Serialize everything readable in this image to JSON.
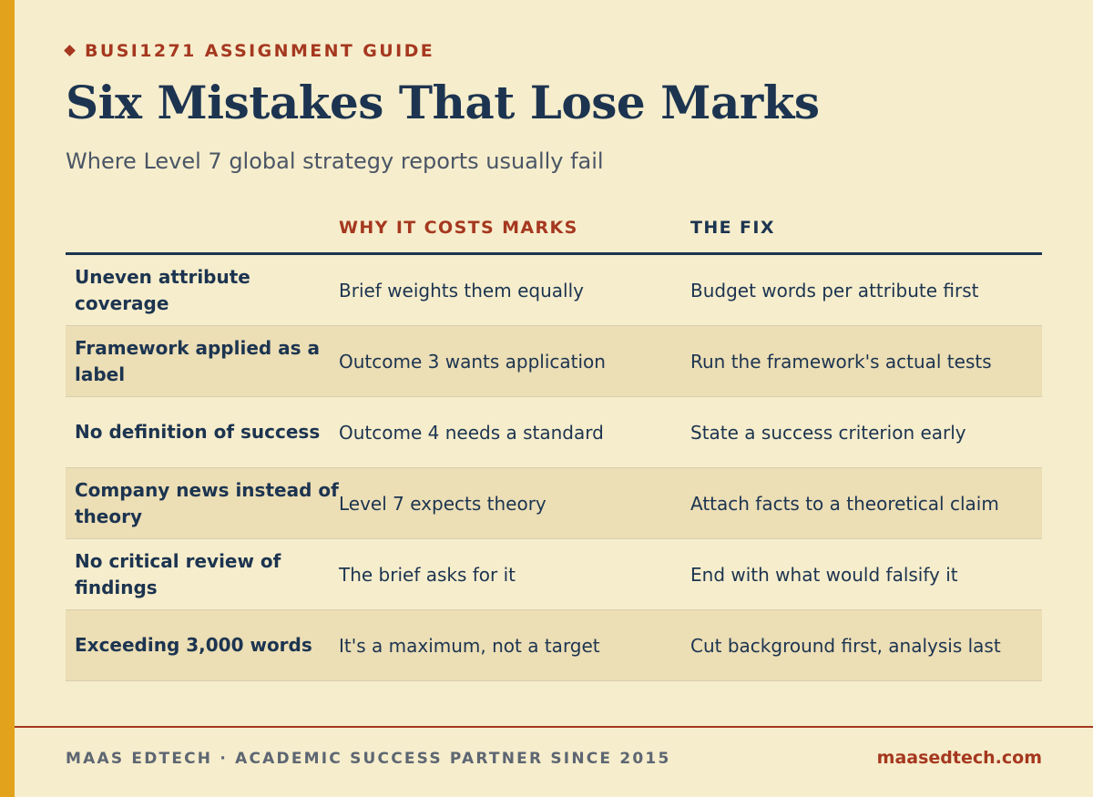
{
  "header": {
    "eyebrow": "BUSI1271 ASSIGNMENT GUIDE",
    "title": "Six Mistakes That Lose Marks",
    "subtitle": "Where Level 7 global strategy reports usually fail"
  },
  "table": {
    "columns": [
      "",
      "WHY IT COSTS MARKS",
      "THE FIX"
    ],
    "rows": [
      {
        "mistake": "Uneven attribute coverage",
        "why": "Brief weights them equally",
        "fix": "Budget words per attribute first"
      },
      {
        "mistake": "Framework applied as a label",
        "why": "Outcome 3 wants application",
        "fix": "Run the framework's actual tests"
      },
      {
        "mistake": "No definition of success",
        "why": "Outcome 4 needs a standard",
        "fix": "State a success criterion early"
      },
      {
        "mistake": "Company news instead of theory",
        "why": "Level 7 expects theory",
        "fix": "Attach facts to a theoretical claim"
      },
      {
        "mistake": "No critical review of findings",
        "why": "The brief asks for it",
        "fix": "End with what would falsify it"
      },
      {
        "mistake": "Exceeding 3,000 words",
        "why": "It's a maximum, not a target",
        "fix": "Cut background first, analysis last"
      }
    ]
  },
  "footer": {
    "left": "MAAS EDTECH · ACADEMIC SUCCESS PARTNER SINCE 2015",
    "right": "maasedtech.com"
  },
  "colors": {
    "background": "#f6edcc",
    "accent_bar": "#e3a21c",
    "navy": "#1c3450",
    "rust": "#a5381f",
    "row_alt": "#ecdeb5"
  }
}
